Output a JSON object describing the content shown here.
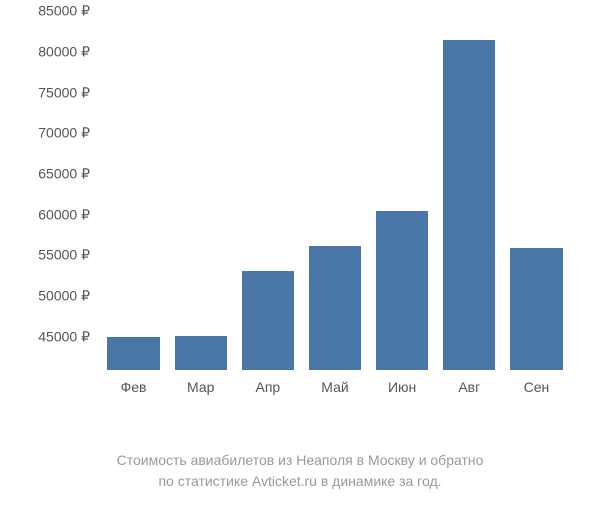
{
  "chart": {
    "type": "bar",
    "categories": [
      "Фев",
      "Мар",
      "Апр",
      "Май",
      "Июн",
      "Авг",
      "Сен"
    ],
    "values": [
      47000,
      47200,
      55200,
      58200,
      62500,
      83500,
      58000
    ],
    "bar_color": "#4a76a8",
    "y_ticks": [
      45000,
      50000,
      55000,
      60000,
      65000,
      70000,
      75000,
      80000,
      85000
    ],
    "y_tick_labels": [
      "45000 ₽",
      "50000 ₽",
      "55000 ₽",
      "60000 ₽",
      "65000 ₽",
      "70000 ₽",
      "75000 ₽",
      "80000 ₽",
      "85000 ₽"
    ],
    "ylim": [
      43000,
      86000
    ],
    "bar_width_ratio": 0.78,
    "tick_color": "#555555",
    "tick_fontsize": 14,
    "background_color": "#ffffff"
  },
  "caption": {
    "line1": "Стоимость авиабилетов из Неаполя в Москву и обратно",
    "line2": "по статистике Avticket.ru в динамике за год.",
    "color": "#999999",
    "fontsize": 14
  }
}
